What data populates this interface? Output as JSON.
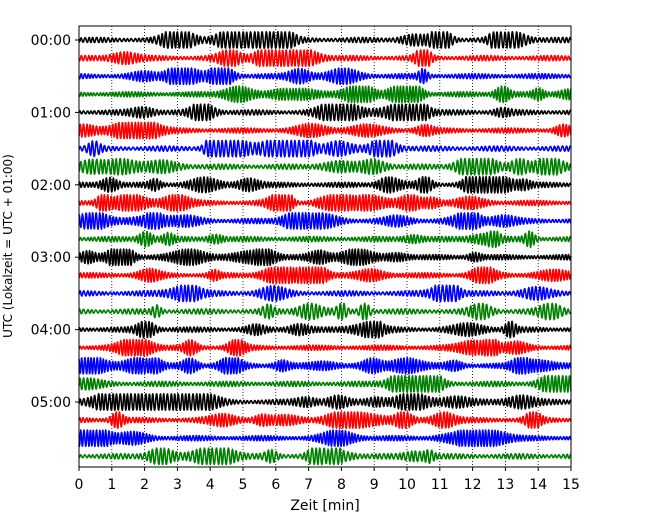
{
  "chart_data": {
    "type": "line",
    "title": "",
    "xlabel": "Zeit  [min]",
    "ylabel": "UTC (Lokalzeit = UTC + 01:00)",
    "xlim": [
      0,
      15
    ],
    "x_ticks": [
      "0",
      "1",
      "2",
      "3",
      "4",
      "5",
      "6",
      "7",
      "8",
      "9",
      "10",
      "11",
      "12",
      "13",
      "14",
      "15"
    ],
    "y_tick_labels": [
      "00:00",
      "01:00",
      "02:00",
      "03:00",
      "04:00",
      "05:00"
    ],
    "rows_per_hour": 4,
    "row_count": 24,
    "minutes_per_row": 15,
    "trace_colors": [
      "#000000",
      "#ff0000",
      "#0000ff",
      "#008000"
    ],
    "grid": {
      "vertical": true,
      "style": "dotted"
    },
    "legend": "none",
    "note_traces": "Each row is a 15-minute seismogram segment; traces cycle black, red, blue, green."
  }
}
